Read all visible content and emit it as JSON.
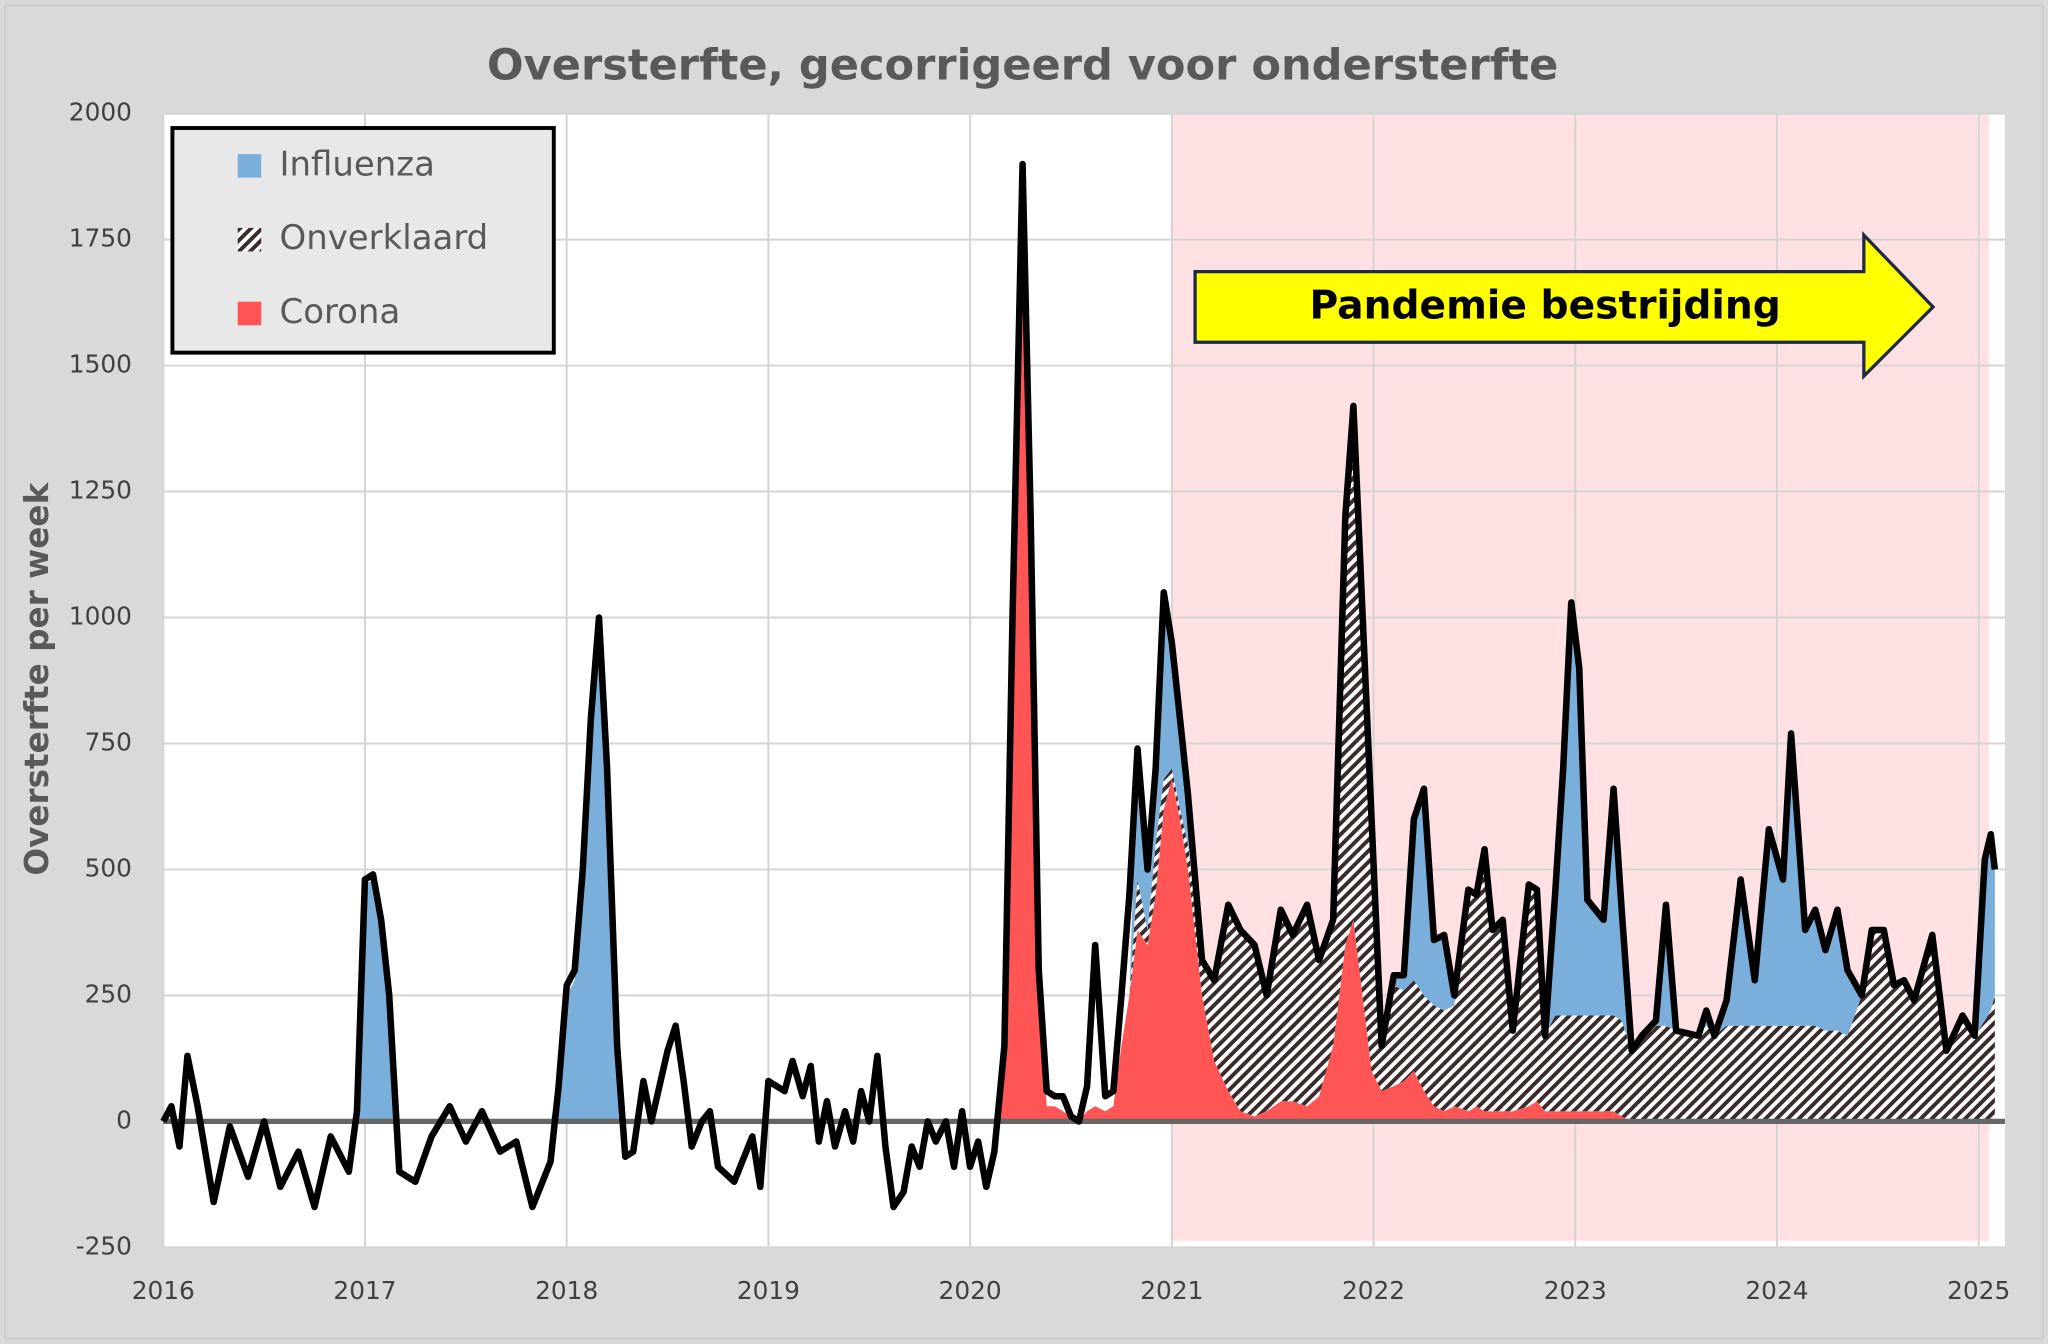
{
  "chart_data": {
    "type": "area",
    "title": "Oversterfte, gecorrigeerd voor ondersterfte",
    "ylabel": "Oversterfte per week",
    "annotation": "Pandemie bestrijding",
    "annotation_color": "#ffff00",
    "shade": {
      "from": 2021,
      "to": 2025.05,
      "color": "#ffe1e4"
    },
    "legend": "upper left",
    "grid": true,
    "xlim": [
      2016,
      2025.13
    ],
    "xticks": [
      2016,
      2017,
      2018,
      2019,
      2020,
      2021,
      2022,
      2023,
      2024,
      2025
    ],
    "ylim": [
      -250,
      2000
    ],
    "yticks": [
      -250,
      0,
      250,
      500,
      750,
      1000,
      1250,
      1500,
      1750,
      2000
    ],
    "x": [
      2016,
      2016.04,
      2016.08,
      2016.12,
      2016.17,
      2016.25,
      2016.33,
      2016.42,
      2016.5,
      2016.58,
      2016.67,
      2016.75,
      2016.83,
      2016.92,
      2016.96,
      2017,
      2017.04,
      2017.08,
      2017.12,
      2017.17,
      2017.25,
      2017.33,
      2017.42,
      2017.5,
      2017.58,
      2017.67,
      2017.75,
      2017.83,
      2017.92,
      2017.96,
      2018,
      2018.04,
      2018.08,
      2018.12,
      2018.16,
      2018.2,
      2018.25,
      2018.29,
      2018.33,
      2018.38,
      2018.42,
      2018.5,
      2018.54,
      2018.58,
      2018.62,
      2018.67,
      2018.71,
      2018.75,
      2018.83,
      2018.92,
      2018.96,
      2019,
      2019.08,
      2019.12,
      2019.17,
      2019.21,
      2019.25,
      2019.29,
      2019.33,
      2019.38,
      2019.42,
      2019.46,
      2019.5,
      2019.54,
      2019.58,
      2019.62,
      2019.67,
      2019.71,
      2019.75,
      2019.79,
      2019.83,
      2019.88,
      2019.92,
      2019.96,
      2020,
      2020.04,
      2020.08,
      2020.12,
      2020.17,
      2020.21,
      2020.26,
      2020.3,
      2020.34,
      2020.38,
      2020.42,
      2020.46,
      2020.5,
      2020.54,
      2020.58,
      2020.62,
      2020.67,
      2020.71,
      2020.75,
      2020.79,
      2020.83,
      2020.88,
      2020.92,
      2020.96,
      2021,
      2021.04,
      2021.08,
      2021.15,
      2021.21,
      2021.28,
      2021.34,
      2021.41,
      2021.47,
      2021.54,
      2021.6,
      2021.67,
      2021.73,
      2021.8,
      2021.83,
      2021.86,
      2021.9,
      2021.99,
      2022.04,
      2022.1,
      2022.15,
      2022.2,
      2022.25,
      2022.3,
      2022.35,
      2022.4,
      2022.47,
      2022.51,
      2022.55,
      2022.59,
      2022.64,
      2022.69,
      2022.77,
      2022.81,
      2022.85,
      2022.9,
      2022.94,
      2022.98,
      2023.02,
      2023.06,
      2023.14,
      2023.19,
      2023.23,
      2023.28,
      2023.33,
      2023.4,
      2023.45,
      2023.5,
      2023.61,
      2023.65,
      2023.69,
      2023.75,
      2023.82,
      2023.89,
      2023.96,
      2024.03,
      2024.07,
      2024.14,
      2024.19,
      2024.24,
      2024.3,
      2024.35,
      2024.42,
      2024.47,
      2024.53,
      2024.58,
      2024.63,
      2024.68,
      2024.77,
      2024.84,
      2024.92,
      2024.98,
      2025.03,
      2025.06,
      2025.08
    ],
    "total": {
      "color": "#000000",
      "values": [
        0,
        30,
        -50,
        130,
        30,
        -160,
        -10,
        -110,
        0,
        -130,
        -60,
        -170,
        -30,
        -100,
        20,
        480,
        490,
        400,
        250,
        -100,
        -120,
        -30,
        30,
        -40,
        20,
        -60,
        -40,
        -170,
        -80,
        70,
        270,
        300,
        500,
        800,
        1000,
        700,
        150,
        -70,
        -60,
        80,
        0,
        140,
        190,
        80,
        -50,
        0,
        20,
        -90,
        -120,
        -30,
        -130,
        80,
        60,
        120,
        50,
        110,
        -40,
        40,
        -50,
        20,
        -40,
        60,
        0,
        130,
        -50,
        -170,
        -140,
        -50,
        -90,
        0,
        -40,
        0,
        -90,
        20,
        -90,
        -40,
        -130,
        -60,
        150,
        1000,
        1900,
        1200,
        300,
        60,
        50,
        50,
        10,
        0,
        70,
        350,
        50,
        60,
        250,
        450,
        740,
        500,
        700,
        1050,
        950,
        800,
        650,
        320,
        280,
        430,
        380,
        350,
        250,
        420,
        370,
        430,
        320,
        400,
        800,
        1200,
        1420,
        600,
        150,
        290,
        290,
        600,
        660,
        360,
        370,
        250,
        460,
        450,
        540,
        380,
        400,
        180,
        470,
        460,
        170,
        450,
        700,
        1030,
        900,
        440,
        400,
        660,
        420,
        140,
        170,
        200,
        430,
        180,
        170,
        220,
        170,
        240,
        480,
        280,
        580,
        480,
        770,
        380,
        420,
        340,
        420,
        300,
        250,
        380,
        380,
        270,
        280,
        240,
        370,
        140,
        210,
        170,
        520,
        570,
        500
      ]
    },
    "series": [
      {
        "name": "Influenza",
        "color": "#7aaedb",
        "values": [
          0,
          0,
          0,
          0,
          0,
          0,
          0,
          0,
          0,
          0,
          0,
          0,
          0,
          0,
          10,
          470,
          480,
          390,
          240,
          0,
          0,
          0,
          0,
          0,
          0,
          0,
          0,
          0,
          0,
          60,
          250,
          280,
          480,
          780,
          980,
          680,
          130,
          0,
          0,
          0,
          0,
          0,
          0,
          0,
          0,
          0,
          0,
          0,
          0,
          0,
          0,
          0,
          0,
          0,
          0,
          0,
          0,
          0,
          0,
          0,
          0,
          0,
          0,
          0,
          0,
          0,
          0,
          0,
          0,
          0,
          0,
          0,
          0,
          0,
          0,
          0,
          0,
          0,
          0,
          0,
          0,
          0,
          0,
          0,
          0,
          0,
          0,
          0,
          0,
          0,
          0,
          0,
          0,
          0,
          260,
          120,
          150,
          370,
          250,
          180,
          100,
          0,
          0,
          0,
          0,
          0,
          0,
          0,
          0,
          0,
          0,
          0,
          0,
          0,
          0,
          0,
          0,
          20,
          30,
          320,
          410,
          130,
          150,
          20,
          0,
          0,
          0,
          0,
          0,
          0,
          0,
          0,
          0,
          240,
          490,
          820,
          690,
          230,
          190,
          450,
          220,
          0,
          0,
          10,
          240,
          0,
          0,
          30,
          0,
          50,
          290,
          90,
          390,
          290,
          580,
          190,
          230,
          160,
          240,
          130,
          0,
          0,
          0,
          0,
          0,
          0,
          0,
          0,
          0,
          0,
          320,
          350,
          250
        ]
      },
      {
        "name": "Onverklaard",
        "color": "#3b2b2b",
        "pattern": "hatch",
        "values": [
          0,
          0,
          0,
          0,
          0,
          0,
          0,
          0,
          0,
          0,
          0,
          0,
          0,
          0,
          0,
          0,
          0,
          0,
          0,
          0,
          0,
          0,
          0,
          0,
          0,
          0,
          0,
          0,
          0,
          0,
          0,
          0,
          0,
          0,
          0,
          0,
          0,
          0,
          0,
          0,
          0,
          0,
          0,
          0,
          0,
          0,
          0,
          0,
          0,
          0,
          0,
          0,
          0,
          0,
          0,
          0,
          0,
          0,
          0,
          0,
          0,
          0,
          0,
          0,
          0,
          0,
          0,
          0,
          0,
          0,
          0,
          0,
          0,
          0,
          0,
          0,
          0,
          0,
          0,
          0,
          0,
          0,
          0,
          0,
          0,
          0,
          0,
          0,
          0,
          0,
          0,
          0,
          0,
          0,
          100,
          30,
          100,
          60,
          20,
          20,
          50,
          70,
          160,
          370,
          360,
          340,
          230,
          380,
          330,
          400,
          270,
          250,
          550,
          850,
          1020,
          500,
          90,
          200,
          180,
          180,
          190,
          200,
          200,
          200,
          440,
          420,
          520,
          360,
          380,
          160,
          440,
          420,
          150,
          190,
          190,
          190,
          190,
          190,
          190,
          190,
          190,
          140,
          170,
          190,
          190,
          180,
          170,
          190,
          170,
          190,
          190,
          190,
          190,
          190,
          190,
          190,
          190,
          180,
          180,
          170,
          250,
          380,
          380,
          270,
          280,
          240,
          370,
          140,
          210,
          170,
          200,
          220,
          250
        ]
      },
      {
        "name": "Corona",
        "color": "#ff5555",
        "values": [
          0,
          0,
          0,
          0,
          0,
          0,
          0,
          0,
          0,
          0,
          0,
          0,
          0,
          0,
          0,
          0,
          0,
          0,
          0,
          0,
          0,
          0,
          0,
          0,
          0,
          0,
          0,
          0,
          0,
          0,
          0,
          0,
          0,
          0,
          0,
          0,
          0,
          0,
          0,
          0,
          0,
          0,
          0,
          0,
          0,
          0,
          0,
          0,
          0,
          0,
          0,
          0,
          0,
          0,
          0,
          0,
          0,
          0,
          0,
          0,
          0,
          0,
          0,
          0,
          0,
          0,
          0,
          0,
          0,
          0,
          0,
          0,
          0,
          0,
          0,
          0,
          0,
          0,
          150,
          950,
          1800,
          1100,
          260,
          30,
          30,
          20,
          10,
          0,
          20,
          30,
          20,
          30,
          150,
          250,
          380,
          350,
          450,
          620,
          680,
          600,
          500,
          250,
          120,
          60,
          20,
          10,
          20,
          40,
          40,
          30,
          50,
          150,
          250,
          350,
          400,
          100,
          60,
          70,
          80,
          100,
          60,
          30,
          20,
          30,
          20,
          30,
          20,
          20,
          20,
          20,
          30,
          40,
          20,
          20,
          20,
          20,
          20,
          20,
          20,
          20,
          10,
          0,
          0,
          0,
          0,
          0,
          0,
          0,
          0,
          0,
          0,
          0,
          0,
          0,
          0,
          0,
          0,
          0,
          0,
          0,
          0,
          0,
          0,
          0,
          0,
          0,
          0,
          0,
          0,
          0,
          0,
          0,
          0
        ]
      }
    ]
  }
}
